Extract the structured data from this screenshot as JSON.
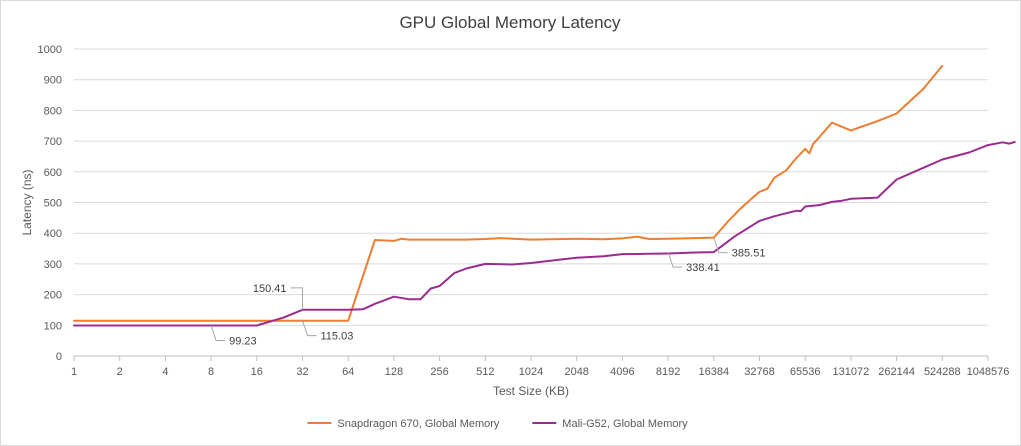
{
  "chart_data": {
    "type": "line",
    "title": "GPU Global Memory Latency",
    "xlabel": "Test Size (KB)",
    "ylabel": "Latency (ns)",
    "x_scale": "log2",
    "xlim": [
      1,
      1048576
    ],
    "ylim": [
      0,
      1000
    ],
    "x_ticks": [
      "1",
      "2",
      "4",
      "8",
      "16",
      "32",
      "64",
      "128",
      "256",
      "512",
      "1024",
      "2048",
      "4096",
      "8192",
      "16384",
      "32768",
      "65536",
      "131072",
      "262144",
      "524288",
      "1048576"
    ],
    "y_ticks": [
      "0",
      "100",
      "200",
      "300",
      "400",
      "500",
      "600",
      "700",
      "800",
      "900",
      "1000"
    ],
    "grid": "horizontal",
    "legend_position": "bottom",
    "series": [
      {
        "name": "Snapdragon 670, Global Memory",
        "color": "#ed7d31",
        "points": [
          [
            1,
            115
          ],
          [
            2,
            115
          ],
          [
            4,
            115
          ],
          [
            8,
            115
          ],
          [
            16,
            115
          ],
          [
            32,
            115.03
          ],
          [
            64,
            115.03
          ],
          [
            96,
            378
          ],
          [
            128,
            375
          ],
          [
            144,
            382
          ],
          [
            160,
            379
          ],
          [
            256,
            379
          ],
          [
            384,
            379
          ],
          [
            512,
            381
          ],
          [
            640,
            384
          ],
          [
            1024,
            379
          ],
          [
            2048,
            382
          ],
          [
            3072,
            380
          ],
          [
            4096,
            383
          ],
          [
            5120,
            389
          ],
          [
            6144,
            381
          ],
          [
            8192,
            382
          ],
          [
            12288,
            384
          ],
          [
            16384,
            385.51
          ],
          [
            20480,
            440
          ],
          [
            24576,
            480
          ],
          [
            28672,
            510
          ],
          [
            32768,
            535
          ],
          [
            36864,
            545
          ],
          [
            40960,
            580
          ],
          [
            49152,
            605
          ],
          [
            57344,
            645
          ],
          [
            61440,
            660
          ],
          [
            65536,
            675
          ],
          [
            69632,
            660
          ],
          [
            73728,
            690
          ],
          [
            81920,
            715
          ],
          [
            98304,
            760
          ],
          [
            131072,
            735
          ],
          [
            196608,
            765
          ],
          [
            262144,
            790
          ],
          [
            393216,
            870
          ],
          [
            524288,
            945
          ]
        ]
      },
      {
        "name": "Mali-G52, Global Memory",
        "color": "#9b2c8f",
        "points": [
          [
            1,
            99.23
          ],
          [
            2,
            99.23
          ],
          [
            4,
            99.23
          ],
          [
            8,
            99.23
          ],
          [
            16,
            99.23
          ],
          [
            24,
            125
          ],
          [
            32,
            150.41
          ],
          [
            48,
            150.41
          ],
          [
            64,
            150.41
          ],
          [
            80,
            152
          ],
          [
            96,
            170
          ],
          [
            128,
            193
          ],
          [
            160,
            185
          ],
          [
            192,
            185
          ],
          [
            224,
            220
          ],
          [
            256,
            228
          ],
          [
            320,
            270
          ],
          [
            384,
            285
          ],
          [
            512,
            300
          ],
          [
            768,
            298
          ],
          [
            1024,
            303
          ],
          [
            1536,
            313
          ],
          [
            2048,
            320
          ],
          [
            3072,
            325
          ],
          [
            4096,
            332
          ],
          [
            6144,
            333
          ],
          [
            8192,
            334
          ],
          [
            12288,
            337
          ],
          [
            16384,
            338.41
          ],
          [
            22528,
            390
          ],
          [
            32768,
            440
          ],
          [
            40960,
            455
          ],
          [
            49152,
            465
          ],
          [
            57344,
            473
          ],
          [
            61440,
            472
          ],
          [
            65536,
            487
          ],
          [
            81920,
            492
          ],
          [
            98304,
            502
          ],
          [
            114688,
            506
          ],
          [
            131072,
            512
          ],
          [
            196608,
            516
          ],
          [
            262144,
            575
          ],
          [
            393216,
            613
          ],
          [
            524288,
            640
          ],
          [
            786432,
            663
          ],
          [
            1048576,
            687
          ],
          [
            1310720,
            696
          ],
          [
            1441792,
            692
          ],
          [
            1572864,
            697
          ]
        ]
      }
    ],
    "annotations": [
      {
        "text": "99.23",
        "series": "Mali-G52, Global Memory",
        "x": 8,
        "y": 99.23,
        "placement": "below-right"
      },
      {
        "text": "150.41",
        "series": "Mali-G52, Global Memory",
        "x": 32,
        "y": 150.41,
        "placement": "above-left"
      },
      {
        "text": "115.03",
        "series": "Snapdragon 670, Global Memory",
        "x": 32,
        "y": 115.03,
        "placement": "below-right"
      },
      {
        "text": "338.41",
        "series": "Mali-G52, Global Memory",
        "x": 8192,
        "y": 338.41,
        "placement": "below-right"
      },
      {
        "text": "385.51",
        "series": "Snapdragon 670, Global Memory",
        "x": 16384,
        "y": 385.51,
        "placement": "below-right"
      }
    ]
  }
}
